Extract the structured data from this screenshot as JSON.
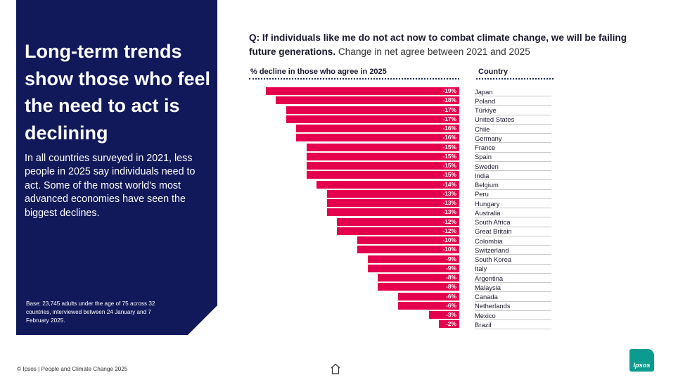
{
  "left_panel": {
    "headline": "Long-term trends show those who feel the need to act is declining",
    "intro": "In all countries surveyed in 2021, less people in 2025 say individuals need to act. Some of the most world's most advanced economies have seen the biggest declines.",
    "base_note": "Base: 23,745 adults under the age of 75 across 32 countries, interviewed between 24 January and 7 February 2025."
  },
  "question": {
    "strong": "Q: If individuals like me do not act now to combat climate change, we will be failing future generations.",
    "sub": "Change in net agree between 2021 and 2025"
  },
  "footer": {
    "copyright": "© Ipsos | People and Climate Change 2025",
    "logo_text": "Ipsos",
    "colors": {
      "panel": "#12195a",
      "bar": "#e5004e",
      "logo": "#0b9c8f"
    },
    "icons": [
      "home-icon"
    ]
  },
  "chart_data": {
    "type": "bar",
    "orientation": "horizontal",
    "xlabel": "% decline in those who agree in 2025",
    "ylabel": "Country",
    "categories": [
      "Japan",
      "Poland",
      "Türkiye",
      "United States",
      "Chile",
      "Germany",
      "France",
      "Spain",
      "Sweden",
      "India",
      "Belgium",
      "Peru",
      "Hungary",
      "Australia",
      "South Africa",
      "Great Britain",
      "Colombia",
      "Switzerland",
      "South Korea",
      "Italy",
      "Argentina",
      "Malaysia",
      "Canada",
      "Netherlands",
      "Mexico",
      "Brazil"
    ],
    "values": [
      -19,
      -18,
      -17,
      -17,
      -16,
      -16,
      -15,
      -15,
      -15,
      -15,
      -14,
      -13,
      -13,
      -13,
      -12,
      -12,
      -10,
      -10,
      -9,
      -9,
      -8,
      -8,
      -6,
      -6,
      -3,
      -2
    ],
    "labels": [
      "-19%",
      "-18%",
      "-17%",
      "-17%",
      "-16%",
      "-16%",
      "-15%",
      "-15%",
      "-15%",
      "-15%",
      "-14%",
      "-13%",
      "-13%",
      "-13%",
      "-12%",
      "-12%",
      "-10%",
      "-10%",
      "-9%",
      "-9%",
      "-8%",
      "-8%",
      "-6%",
      "-6%",
      "-3%",
      "-2%"
    ]
  }
}
